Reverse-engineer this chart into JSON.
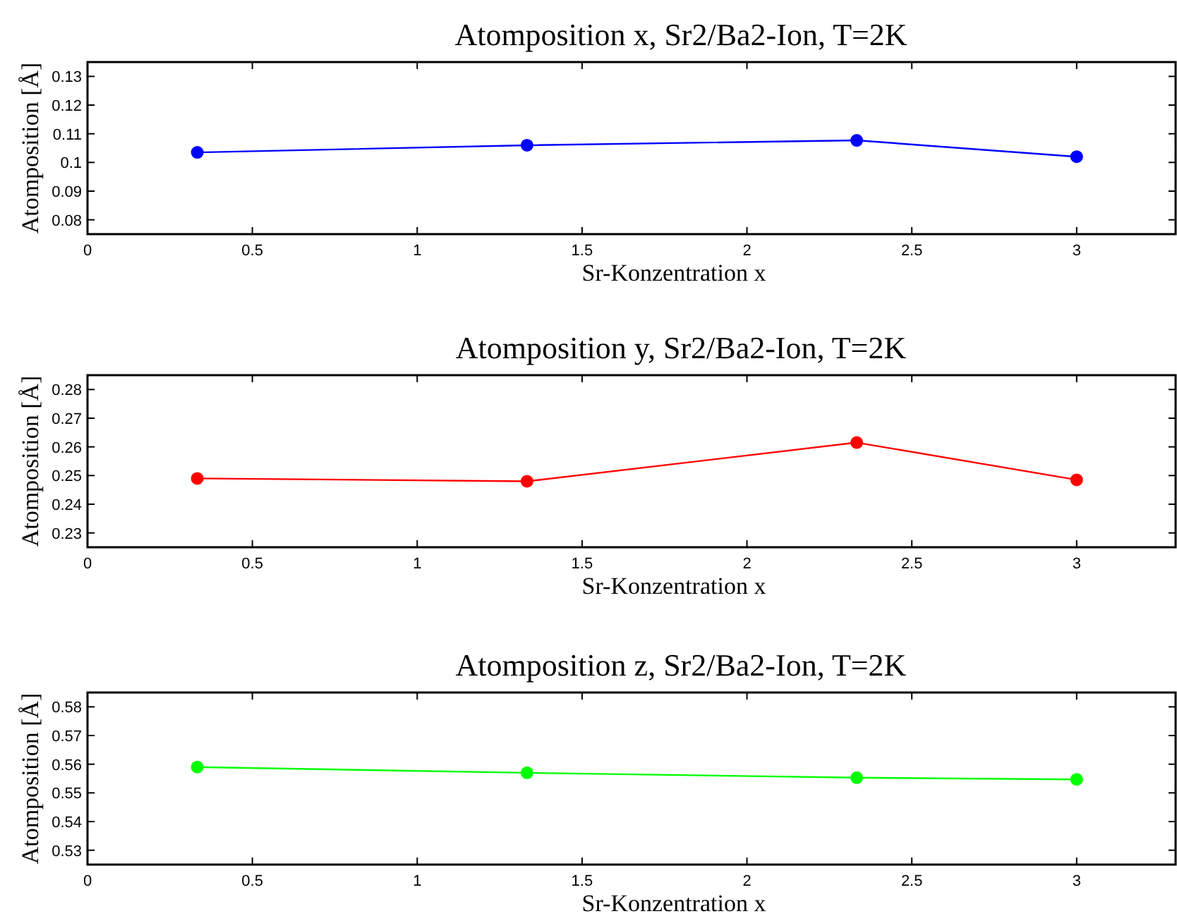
{
  "chart_data": [
    {
      "type": "line",
      "title": "Atomposition x, Sr2/Ba2-Ion, T=2K",
      "xlabel": "Sr-Konzentration x",
      "ylabel": "Atomposition [Å]",
      "x": [
        0.333,
        1.333,
        2.333,
        3
      ],
      "series": [
        {
          "color": "#0000ff",
          "values": [
            0.1035,
            0.106,
            0.1077,
            0.102
          ]
        }
      ],
      "xlim": [
        0,
        3.3
      ],
      "xticks": [
        0,
        0.5,
        1,
        1.5,
        2,
        2.5,
        3
      ],
      "ylim": [
        0.075,
        0.135
      ],
      "yticks": [
        0.08,
        0.09,
        0.1,
        0.11,
        0.12,
        0.13
      ],
      "marker": "circle",
      "line_style": "solid",
      "grid": false
    },
    {
      "type": "line",
      "title": "Atomposition y, Sr2/Ba2-Ion, T=2K",
      "xlabel": "Sr-Konzentration x",
      "ylabel": "Atomposition [Å]",
      "x": [
        0.333,
        1.333,
        2.333,
        3
      ],
      "series": [
        {
          "color": "#ff0000",
          "values": [
            0.249,
            0.248,
            0.2615,
            0.2485
          ]
        }
      ],
      "xlim": [
        0,
        3.3
      ],
      "xticks": [
        0,
        0.5,
        1,
        1.5,
        2,
        2.5,
        3
      ],
      "ylim": [
        0.225,
        0.285
      ],
      "yticks": [
        0.23,
        0.24,
        0.25,
        0.26,
        0.27,
        0.28
      ],
      "marker": "circle",
      "line_style": "solid",
      "grid": false
    },
    {
      "type": "line",
      "title": "Atomposition z, Sr2/Ba2-Ion, T=2K",
      "xlabel": "Sr-Konzentration x",
      "ylabel": "Atomposition [Å]",
      "x": [
        0.333,
        1.333,
        2.333,
        3
      ],
      "series": [
        {
          "color": "#00ff00",
          "values": [
            0.559,
            0.557,
            0.5553,
            0.5547
          ]
        }
      ],
      "xlim": [
        0,
        3.3
      ],
      "xticks": [
        0,
        0.5,
        1,
        1.5,
        2,
        2.5,
        3
      ],
      "ylim": [
        0.525,
        0.585
      ],
      "yticks": [
        0.53,
        0.54,
        0.55,
        0.56,
        0.57,
        0.58
      ],
      "marker": "circle",
      "line_style": "solid",
      "grid": false
    }
  ]
}
